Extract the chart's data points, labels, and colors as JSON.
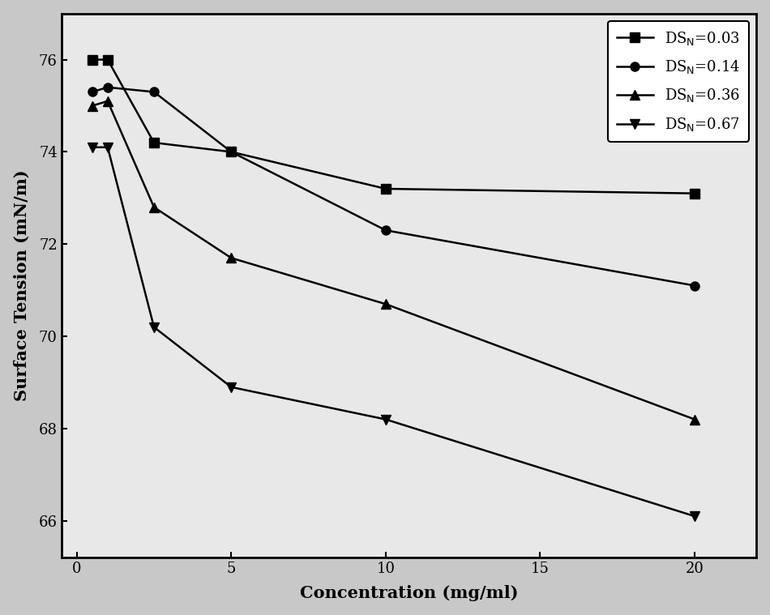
{
  "series": [
    {
      "label": "DS$_\\mathrm{N}$=0.03",
      "x": [
        0.5,
        1,
        2.5,
        5,
        10,
        20
      ],
      "y": [
        76.0,
        76.0,
        74.2,
        74.0,
        73.2,
        73.1
      ],
      "marker": "s",
      "color": "#000000",
      "linestyle": "-"
    },
    {
      "label": "DS$_\\mathrm{N}$=0.14",
      "x": [
        0.5,
        1,
        2.5,
        5,
        10,
        20
      ],
      "y": [
        75.3,
        75.4,
        75.3,
        74.0,
        72.3,
        71.1
      ],
      "marker": "o",
      "color": "#000000",
      "linestyle": "-"
    },
    {
      "label": "DS$_\\mathrm{N}$=0.36",
      "x": [
        0.5,
        1,
        2.5,
        5,
        10,
        20
      ],
      "y": [
        75.0,
        75.1,
        72.8,
        71.7,
        70.7,
        68.2
      ],
      "marker": "^",
      "color": "#000000",
      "linestyle": "-"
    },
    {
      "label": "DS$_\\mathrm{N}$=0.67",
      "x": [
        0.5,
        1,
        2.5,
        5,
        10,
        20
      ],
      "y": [
        74.1,
        74.1,
        70.2,
        68.9,
        68.2,
        66.1
      ],
      "marker": "v",
      "color": "#000000",
      "linestyle": "-"
    }
  ],
  "xlabel": "Concentration (mg/ml)",
  "ylabel": "Surface Tension (mN/m)",
  "xlim": [
    -0.5,
    22
  ],
  "ylim": [
    65.2,
    77.0
  ],
  "xticks": [
    0,
    5,
    10,
    15,
    20
  ],
  "yticks": [
    66,
    68,
    70,
    72,
    74,
    76
  ],
  "plot_bg_color": "#e8e8e8",
  "fig_bg_color": "#c8c8c8",
  "legend_loc": "upper right",
  "markersize": 8,
  "linewidth": 1.8,
  "fontsize_labels": 15,
  "fontsize_ticks": 13,
  "fontsize_legend": 13,
  "spine_linewidth": 2.0
}
